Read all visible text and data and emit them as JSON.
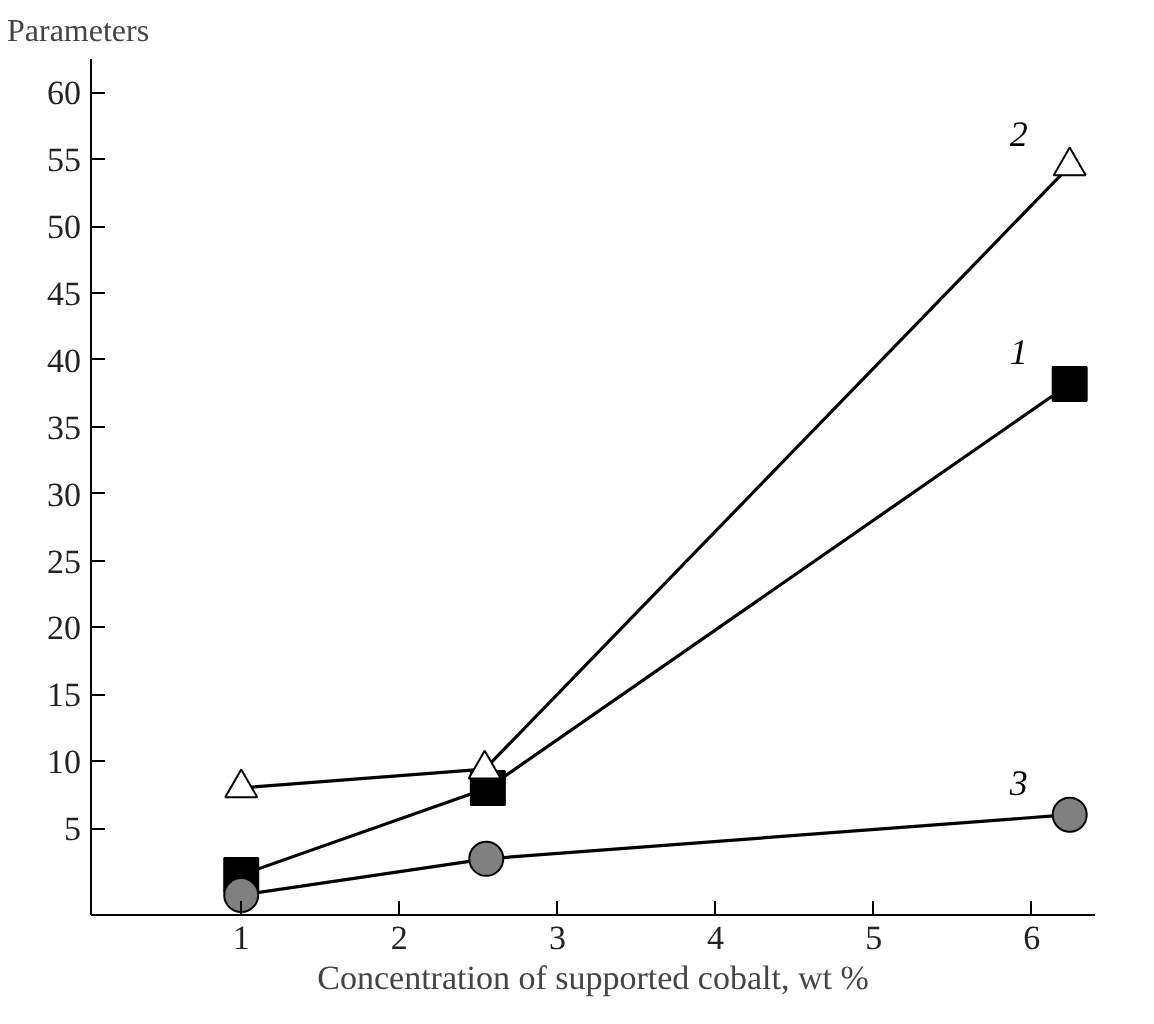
{
  "chart_data": {
    "type": "line",
    "xlabel": "Concentration of supported cobalt, wt %",
    "ylabel": "Parameters",
    "xlim": [
      0.05,
      6.4
    ],
    "ylim": [
      -1.5,
      62.5
    ],
    "xticks": [
      1,
      2,
      3,
      4,
      5,
      6
    ],
    "yticks": [
      5,
      10,
      15,
      20,
      25,
      30,
      35,
      40,
      45,
      50,
      55,
      60
    ],
    "grid": false,
    "series": [
      {
        "name": "1",
        "color": "#000000",
        "marker": "square",
        "x": [
          1,
          2.56,
          6.24
        ],
        "values": [
          1.5,
          8,
          38.2
        ]
      },
      {
        "name": "2",
        "color": "#ffffff",
        "marker": "triangle",
        "x": [
          1,
          2.54,
          6.24
        ],
        "values": [
          8,
          9.4,
          54.5
        ]
      },
      {
        "name": "3",
        "color": "#808080",
        "marker": "circle",
        "x": [
          1,
          2.55,
          6.24
        ],
        "values": [
          0,
          2.7,
          6
        ]
      }
    ]
  }
}
